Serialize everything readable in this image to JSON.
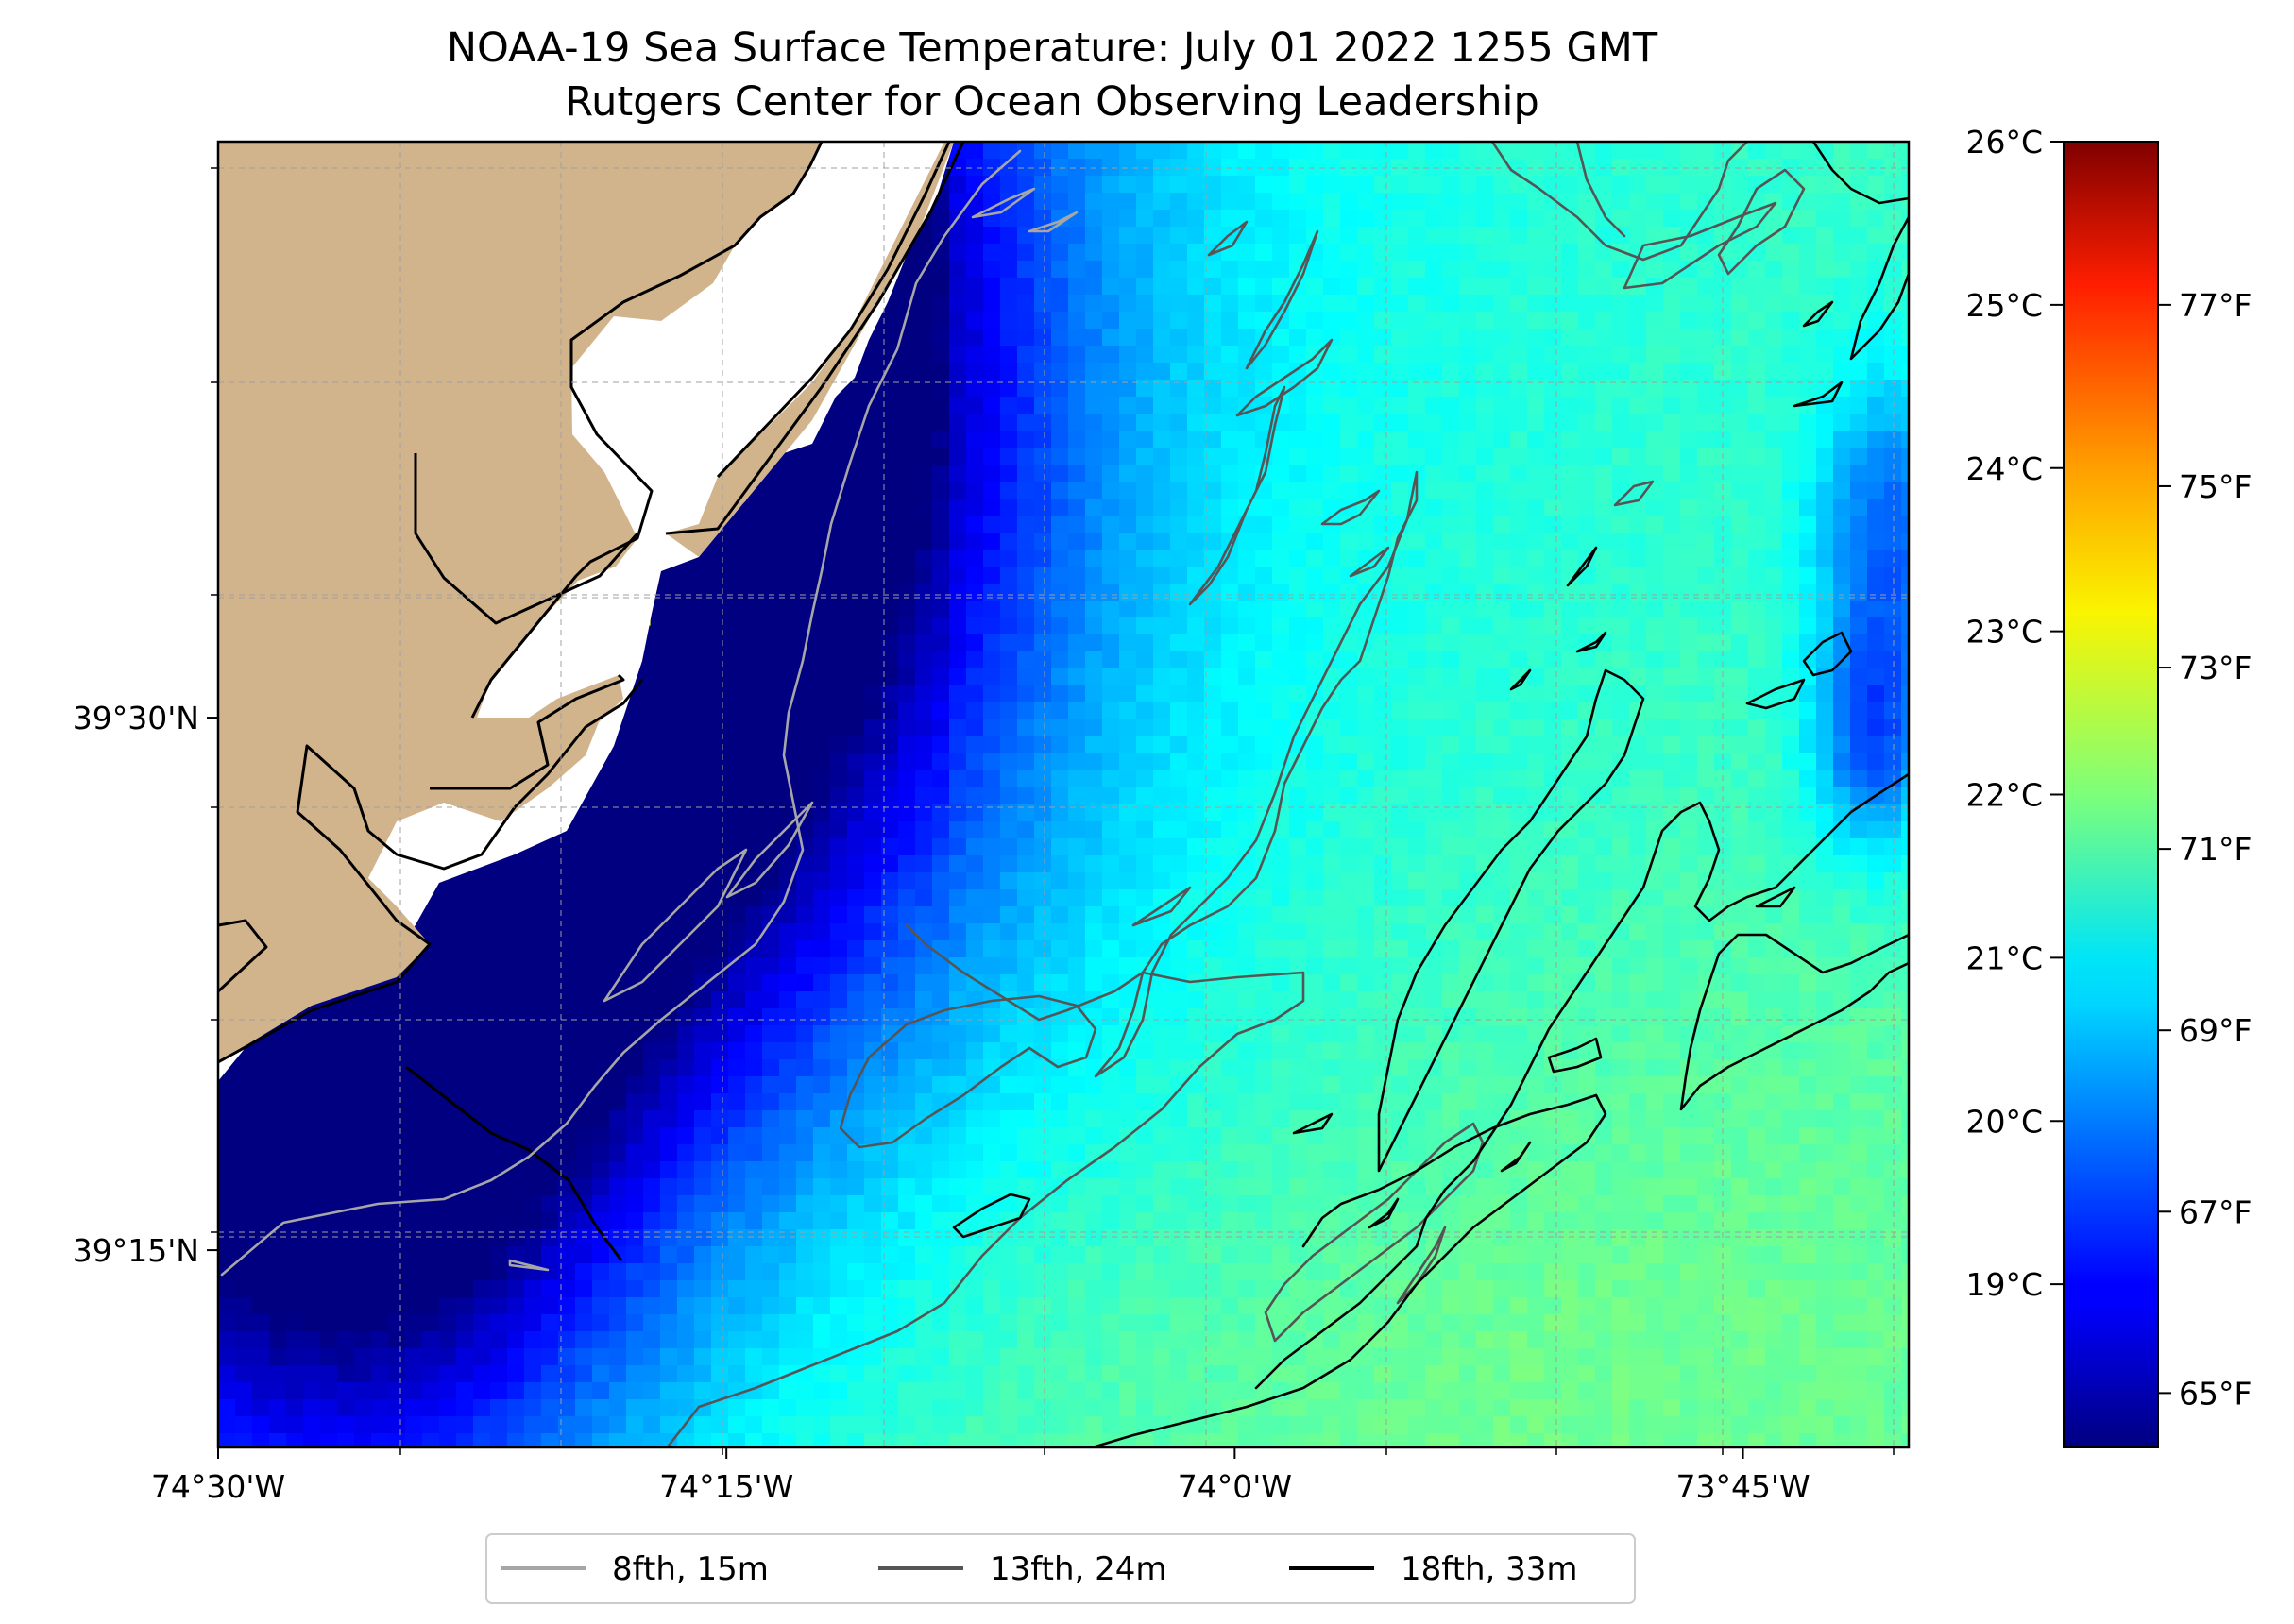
{
  "title": {
    "line1": "NOAA-19 Sea Surface Temperature: July 01 2022 1255 GMT",
    "line2": "Rutgers Center for Ocean Observing Leadership"
  },
  "map": {
    "lon_range": [
      -74.5,
      -73.6685
    ],
    "lat_range": [
      39.1574,
      39.7704
    ],
    "land_color": "#d2b48c",
    "nodata_color": "#ffffff",
    "grid": true,
    "x_ticks": [
      {
        "value": -74.5,
        "label": "74°30'W"
      },
      {
        "value": -74.25,
        "label": "74°15'W"
      },
      {
        "value": -74.0,
        "label": "74°0'W"
      },
      {
        "value": -73.75,
        "label": "73°45'W"
      }
    ],
    "y_ticks": [
      {
        "value": 39.5,
        "label": "39°30'N"
      },
      {
        "value": 39.25,
        "label": "39°15'N"
      }
    ]
  },
  "colorbar": {
    "colormap": "jet",
    "range_c": [
      18.0,
      26.0
    ],
    "celsius_ticks": [
      {
        "value": 19,
        "label": "19°C"
      },
      {
        "value": 20,
        "label": "20°C"
      },
      {
        "value": 21,
        "label": "21°C"
      },
      {
        "value": 22,
        "label": "22°C"
      },
      {
        "value": 23,
        "label": "23°C"
      },
      {
        "value": 24,
        "label": "24°C"
      },
      {
        "value": 25,
        "label": "25°C"
      },
      {
        "value": 26,
        "label": "26°C"
      }
    ],
    "fahrenheit_ticks": [
      {
        "value": 65,
        "label": "65°F"
      },
      {
        "value": 67,
        "label": "67°F"
      },
      {
        "value": 69,
        "label": "69°F"
      },
      {
        "value": 71,
        "label": "71°F"
      },
      {
        "value": 73,
        "label": "73°F"
      },
      {
        "value": 75,
        "label": "75°F"
      },
      {
        "value": 77,
        "label": "77°F"
      }
    ]
  },
  "legend": {
    "position": "bottom-center",
    "items": [
      {
        "label": "8fth, 15m",
        "color": "#a6a6a6"
      },
      {
        "label": "13fth, 24m",
        "color": "#555555"
      },
      {
        "label": "18fth, 33m",
        "color": "#000000"
      }
    ]
  }
}
